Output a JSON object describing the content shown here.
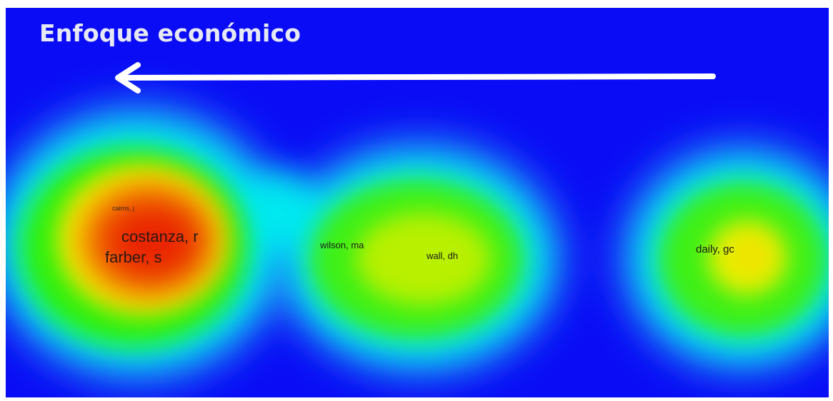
{
  "title": "Enfoque económico",
  "labels": {
    "cairns": "cairns, j",
    "costanza": "costanza, r",
    "farber": "farber, s",
    "wilson": "wilson, ma",
    "wall": "wall, dh",
    "daily": "daily, gc"
  },
  "colors": {
    "background": "#0a0cf5",
    "cyan": "#00f0f0",
    "green": "#2af008",
    "yellow": "#f8f000",
    "red": "#ea1c00",
    "arrow": "#ffffff"
  },
  "arrow_direction": "left"
}
